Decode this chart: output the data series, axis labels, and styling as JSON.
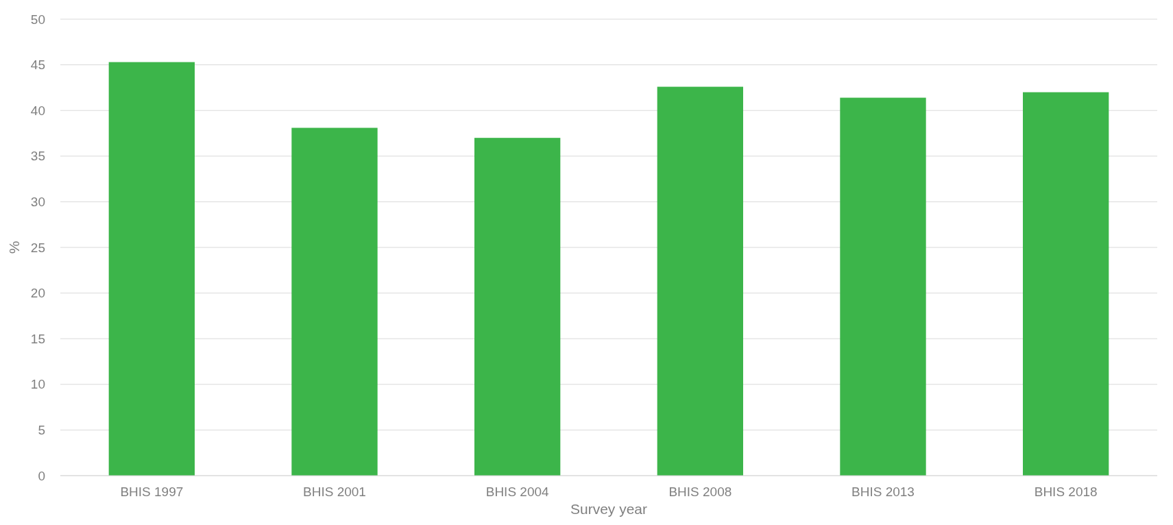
{
  "chart_data": {
    "type": "bar",
    "xlabel": "Survey year",
    "ylabel": "%",
    "categories": [
      "BHIS 1997",
      "BHIS 2001",
      "BHIS 2004",
      "BHIS 2008",
      "BHIS 2013",
      "BHIS 2018"
    ],
    "values": [
      45.3,
      38.1,
      37.0,
      42.6,
      41.4,
      42.0
    ],
    "color": "#3cb54a",
    "ylim": [
      0,
      50
    ],
    "yticks": [
      0,
      5,
      10,
      15,
      20,
      25,
      30,
      35,
      40,
      45,
      50
    ],
    "grid": "y"
  }
}
